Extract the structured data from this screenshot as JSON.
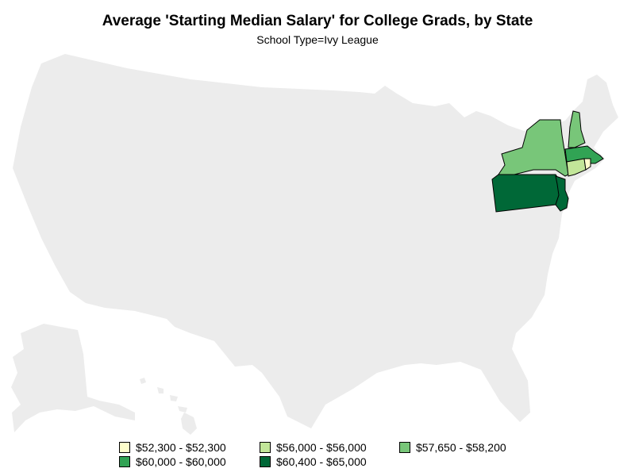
{
  "title": "Average 'Starting Median Salary' for College Grads, by State",
  "subtitle": "School Type=Ivy League",
  "colors": {
    "land": "#ececec",
    "border": "#000000",
    "class_1": "#ffffcc",
    "class_2": "#c2e699",
    "class_3": "#78c679",
    "class_4": "#31a354",
    "class_5": "#006837"
  },
  "legend": [
    {
      "label": "$52,300 - $52,300",
      "color": "#ffffcc"
    },
    {
      "label": "$56,000 - $56,000",
      "color": "#c2e699"
    },
    {
      "label": "$57,650 - $58,200",
      "color": "#78c679"
    },
    {
      "label": "$60,000 - $60,000",
      "color": "#31a354"
    },
    {
      "label": "$60,400 - $65,000",
      "color": "#006837"
    }
  ],
  "states": [
    {
      "name": "New York",
      "class": 3
    },
    {
      "name": "New Hampshire",
      "class": 3
    },
    {
      "name": "Massachusetts",
      "class": 4
    },
    {
      "name": "Connecticut",
      "class": 2
    },
    {
      "name": "Rhode Island",
      "class": 1
    },
    {
      "name": "Pennsylvania",
      "class": 5
    },
    {
      "name": "New Jersey",
      "class": 5
    }
  ]
}
